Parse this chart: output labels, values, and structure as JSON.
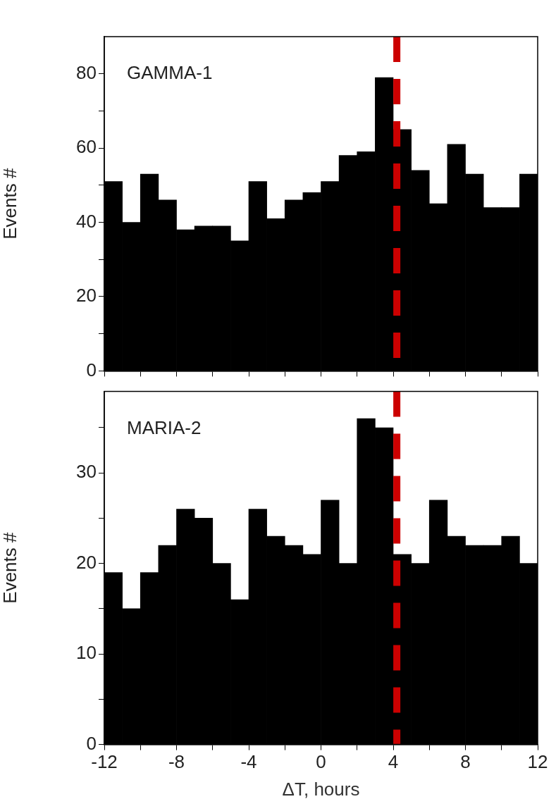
{
  "chart_data": [
    {
      "type": "histogram",
      "ylabel": "Events #",
      "annotations": [
        "GAMMA-1"
      ],
      "bins": [
        -12,
        -11,
        -10,
        -9,
        -8,
        -7,
        -6,
        -5,
        -4,
        -3,
        -2,
        -1,
        0,
        1,
        2,
        3,
        4,
        5,
        6,
        7,
        8,
        9,
        10,
        11,
        12
      ],
      "values": [
        51,
        40,
        53,
        46,
        38,
        39,
        39,
        35,
        51,
        41,
        46,
        48,
        51,
        58,
        59,
        79,
        65,
        54,
        45,
        61,
        53,
        44,
        44,
        53
      ],
      "color": "#000000",
      "xlim": [
        -12,
        12
      ],
      "xticks": [
        {
          "value": -12,
          "label": null
        },
        {
          "value": -10,
          "label": null
        },
        {
          "value": -8,
          "label": null
        },
        {
          "value": -6,
          "label": null
        },
        {
          "value": -4,
          "label": null
        },
        {
          "value": -2,
          "label": null
        },
        {
          "value": 0,
          "label": null
        },
        {
          "value": 2,
          "label": null
        },
        {
          "value": 4,
          "label": null
        },
        {
          "value": 6,
          "label": null
        },
        {
          "value": 8,
          "label": null
        },
        {
          "value": 10,
          "label": null
        },
        {
          "value": 12,
          "label": null
        }
      ],
      "ylim": [
        0,
        90
      ],
      "yticks": [
        0,
        {
          "value": 10,
          "label": null
        },
        20,
        {
          "value": 30,
          "label": null
        },
        40,
        {
          "value": 50,
          "label": null
        },
        60,
        {
          "value": 70,
          "label": null
        },
        80
      ],
      "tick_labels": "y",
      "grid": false,
      "ref_lines": [
        {
          "axis": "x",
          "value": 4.2,
          "color": "#cc0000",
          "line_style": "dashed"
        }
      ]
    },
    {
      "type": "histogram",
      "ylabel": "Events #",
      "xlabel": "ΔT, hours",
      "annotations": [
        "MARIA-2"
      ],
      "bins": [
        -12,
        -11,
        -10,
        -9,
        -8,
        -7,
        -6,
        -5,
        -4,
        -3,
        -2,
        -1,
        0,
        1,
        2,
        3,
        4,
        5,
        6,
        7,
        8,
        9,
        10,
        11,
        12
      ],
      "values": [
        19,
        15,
        19,
        22,
        26,
        25,
        20,
        16,
        26,
        23,
        22,
        21,
        27,
        20,
        36,
        35,
        21,
        20,
        27,
        23,
        22,
        22,
        23,
        20
      ],
      "color": "#000000",
      "xlim": [
        -12,
        12
      ],
      "xticks": [
        -12,
        {
          "value": -10,
          "label": null
        },
        -8,
        {
          "value": -6,
          "label": null
        },
        -4,
        {
          "value": -2,
          "label": null
        },
        0,
        {
          "value": 2,
          "label": null
        },
        4,
        {
          "value": 6,
          "label": null
        },
        8,
        {
          "value": 10,
          "label": null
        },
        12
      ],
      "ylim": [
        0,
        39
      ],
      "yticks": [
        0,
        {
          "value": 5,
          "label": null
        },
        10,
        {
          "value": 15,
          "label": null
        },
        20,
        {
          "value": 25,
          "label": null
        },
        30,
        {
          "value": 35,
          "label": null
        }
      ],
      "grid": false,
      "ref_lines": [
        {
          "axis": "x",
          "value": 4.2,
          "color": "#cc0000",
          "line_style": "dashed"
        }
      ]
    }
  ]
}
